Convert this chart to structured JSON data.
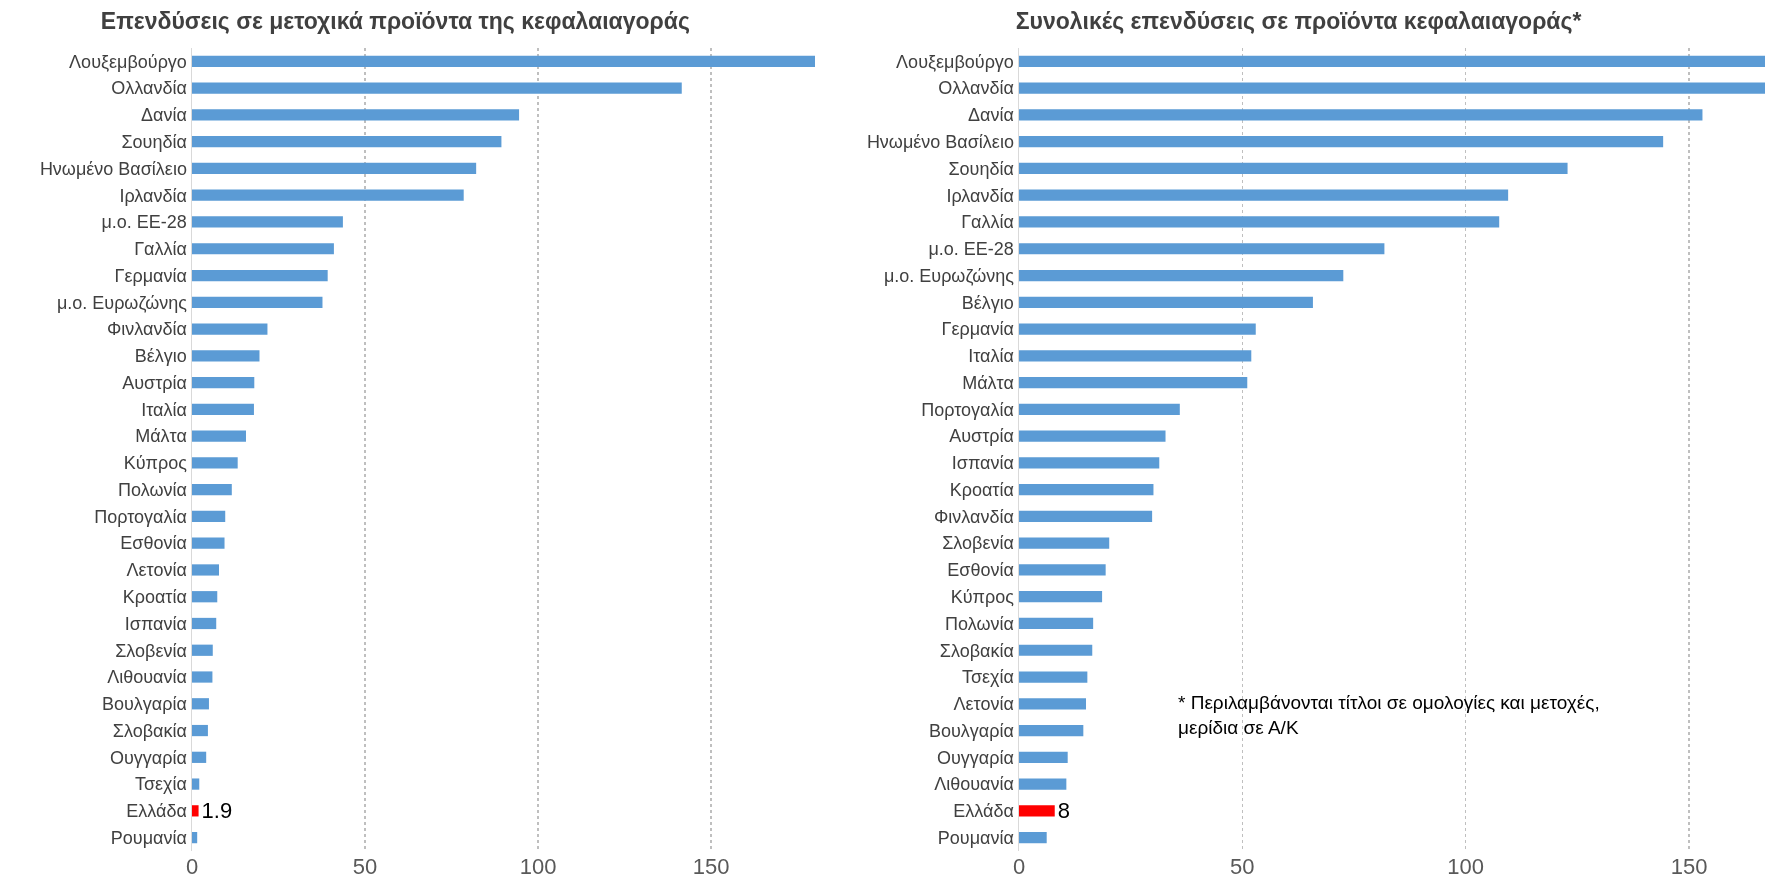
{
  "chart_data": [
    {
      "type": "bar",
      "orientation": "horizontal",
      "title": "Επενδύσεις σε μετοχικά προϊόντα της κεφαλαιαγοράς",
      "categories": [
        "Λουξεμβούργο",
        "Ολλανδία",
        "Δανία",
        "Σουηδία",
        "Ηνωμένο Βασίλειο",
        "Ιρλανδία",
        "μ.ο. ΕΕ-28",
        "Γαλλία",
        "Γερμανία",
        "μ.ο. Ευρωζώνης",
        "Φινλανδία",
        "Βέλγιο",
        "Αυστρία",
        "Ιταλία",
        "Μάλτα",
        "Κύπρος",
        "Πολωνία",
        "Πορτογαλία",
        "Εσθονία",
        "Λετονία",
        "Κροατία",
        "Ισπανία",
        "Σλοβενία",
        "Λιθουανία",
        "Βουλγαρία",
        "Σλοβακία",
        "Ουγγαρία",
        "Τσεχία",
        "Ελλάδα",
        "Ρουμανία"
      ],
      "values": [
        180,
        141.5,
        94.5,
        89.4,
        82.1,
        78.5,
        43.6,
        41,
        39.2,
        37.7,
        21.8,
        19.5,
        18,
        17.9,
        15.6,
        13.2,
        11.5,
        9.6,
        9.4,
        7.8,
        7.3,
        7,
        6,
        5.9,
        4.9,
        4.6,
        4.1,
        2.1,
        1.9,
        1.5
      ],
      "colors": [
        "#5b9bd5",
        "#5b9bd5",
        "#5b9bd5",
        "#5b9bd5",
        "#5b9bd5",
        "#5b9bd5",
        "#5b9bd5",
        "#5b9bd5",
        "#5b9bd5",
        "#5b9bd5",
        "#5b9bd5",
        "#5b9bd5",
        "#5b9bd5",
        "#5b9bd5",
        "#5b9bd5",
        "#5b9bd5",
        "#5b9bd5",
        "#5b9bd5",
        "#5b9bd5",
        "#5b9bd5",
        "#5b9bd5",
        "#5b9bd5",
        "#5b9bd5",
        "#5b9bd5",
        "#5b9bd5",
        "#5b9bd5",
        "#5b9bd5",
        "#5b9bd5",
        "#ff0000",
        "#5b9bd5"
      ],
      "value_labels": [
        null,
        null,
        null,
        null,
        null,
        null,
        null,
        null,
        null,
        null,
        null,
        null,
        null,
        null,
        null,
        null,
        null,
        null,
        null,
        null,
        null,
        null,
        null,
        null,
        null,
        null,
        null,
        null,
        "1.9",
        null
      ],
      "xlim": [
        0,
        180
      ],
      "xticks": [
        0,
        50,
        100,
        150
      ],
      "grid": "x"
    },
    {
      "type": "bar",
      "orientation": "horizontal",
      "title": "Συνολικές επενδύσεις σε προϊόντα κεφαλαιαγοράς*",
      "categories": [
        "Λουξεμβούργο",
        "Ολλανδία",
        "Δανία",
        "Ηνωμένο Βασίλειο",
        "Σουηδία",
        "Ιρλανδία",
        "Γαλλία",
        "μ.ο. ΕΕ-28",
        "μ.ο. Ευρωζώνης",
        "Βέλγιο",
        "Γερμανία",
        "Ιταλία",
        "Μάλτα",
        "Πορτογαλία",
        "Αυστρία",
        "Ισπανία",
        "Κροατία",
        "Φινλανδία",
        "Σλοβενία",
        "Εσθονία",
        "Κύπρος",
        "Πολωνία",
        "Σλοβακία",
        "Τσεχία",
        "Λετονία",
        "Βουλγαρία",
        "Ουγγαρία",
        "Λιθουανία",
        "Ελλάδα",
        "Ρουμανία"
      ],
      "values": [
        167,
        167,
        153,
        144.2,
        122.8,
        109.5,
        107.5,
        81.8,
        72.6,
        65.8,
        53,
        52,
        51.1,
        36,
        32.8,
        31.4,
        30.1,
        29.8,
        20.2,
        19.4,
        18.6,
        16.6,
        16.4,
        15.3,
        15,
        14.4,
        10.9,
        10.6,
        8,
        6.2
      ],
      "colors": [
        "#5b9bd5",
        "#5b9bd5",
        "#5b9bd5",
        "#5b9bd5",
        "#5b9bd5",
        "#5b9bd5",
        "#5b9bd5",
        "#5b9bd5",
        "#5b9bd5",
        "#5b9bd5",
        "#5b9bd5",
        "#5b9bd5",
        "#5b9bd5",
        "#5b9bd5",
        "#5b9bd5",
        "#5b9bd5",
        "#5b9bd5",
        "#5b9bd5",
        "#5b9bd5",
        "#5b9bd5",
        "#5b9bd5",
        "#5b9bd5",
        "#5b9bd5",
        "#5b9bd5",
        "#5b9bd5",
        "#5b9bd5",
        "#5b9bd5",
        "#5b9bd5",
        "#ff0000",
        "#5b9bd5"
      ],
      "value_labels": [
        null,
        null,
        null,
        null,
        null,
        null,
        null,
        null,
        null,
        null,
        null,
        null,
        null,
        null,
        null,
        null,
        null,
        null,
        null,
        null,
        null,
        null,
        null,
        null,
        null,
        null,
        null,
        null,
        "8",
        null
      ],
      "xlim": [
        0,
        167
      ],
      "xticks": [
        0,
        50,
        100,
        150
      ],
      "grid": "x",
      "annotations": [
        "* Περιλαμβάνονται τίτλοι σε ομολογίες και μετοχές,\nμερίδια σε Α/Κ"
      ]
    }
  ]
}
